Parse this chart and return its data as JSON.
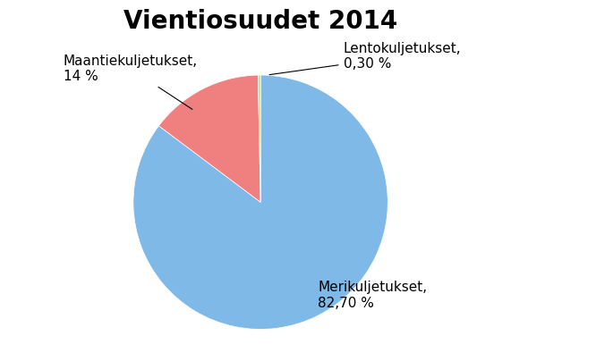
{
  "title": "Vientiosuudet 2014",
  "slices": [
    {
      "label": "Merikuljetukset,\n82,70 %",
      "value": 82.7,
      "color": "#7EB9E8"
    },
    {
      "label": "Maantiekuljetukset,\n14 %",
      "value": 14.0,
      "color": "#F08080"
    },
    {
      "label": "Lentokuljetukset,\n0,30 %",
      "value": 0.3,
      "color": "#CCDD88"
    }
  ],
  "startangle": 90,
  "background_color": "#FFFFFF",
  "title_fontsize": 20,
  "label_fontsize": 11
}
